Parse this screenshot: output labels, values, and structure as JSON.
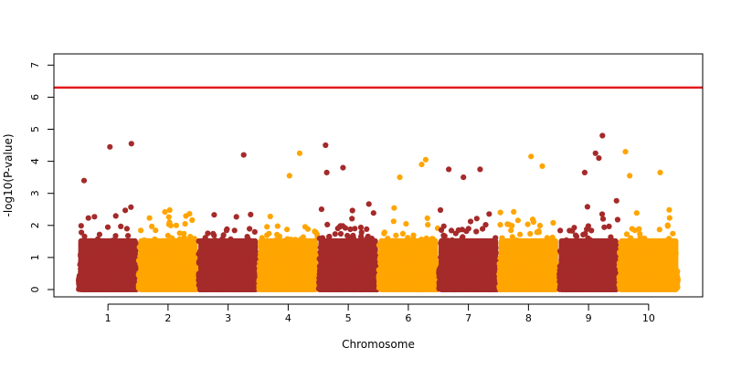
{
  "chart_data": {
    "type": "scatter",
    "subtype": "manhattan",
    "title": "",
    "xlabel": "Chromosome",
    "ylabel": "-log10(P-value)",
    "ylim": [
      0,
      7.3
    ],
    "yticks": [
      0,
      1,
      2,
      3,
      4,
      5,
      6,
      7
    ],
    "grid": false,
    "legend": "none",
    "significance_threshold": 6.3,
    "threshold_color": "#e41a1c",
    "colors": [
      "#a52a2a",
      "#ffa500"
    ],
    "categories": [
      "1",
      "2",
      "3",
      "4",
      "5",
      "6",
      "7",
      "8",
      "9",
      "10"
    ],
    "chromosomes": [
      {
        "label": "1",
        "color": "#a52a2a",
        "bulk_max": 2.7,
        "max": 4.55
      },
      {
        "label": "2",
        "color": "#ffa500",
        "bulk_max": 2.5,
        "max": 3.1
      },
      {
        "label": "3",
        "color": "#a52a2a",
        "bulk_max": 2.4,
        "max": 4.2
      },
      {
        "label": "4",
        "color": "#ffa500",
        "bulk_max": 2.7,
        "max": 4.25
      },
      {
        "label": "5",
        "color": "#a52a2a",
        "bulk_max": 2.7,
        "max": 4.5
      },
      {
        "label": "6",
        "color": "#ffa500",
        "bulk_max": 2.7,
        "max": 4.05
      },
      {
        "label": "7",
        "color": "#a52a2a",
        "bulk_max": 2.6,
        "max": 3.8
      },
      {
        "label": "8",
        "color": "#ffa500",
        "bulk_max": 2.5,
        "max": 4.15
      },
      {
        "label": "9",
        "color": "#a52a2a",
        "bulk_max": 2.8,
        "max": 4.8
      },
      {
        "label": "10",
        "color": "#ffa500",
        "bulk_max": 2.5,
        "max": 4.3
      }
    ],
    "notable_points": [
      {
        "chr": "1",
        "y": 4.45
      },
      {
        "chr": "1",
        "y": 4.55
      },
      {
        "chr": "1",
        "y": 3.4
      },
      {
        "chr": "3",
        "y": 4.2
      },
      {
        "chr": "4",
        "y": 4.25
      },
      {
        "chr": "4",
        "y": 3.55
      },
      {
        "chr": "5",
        "y": 4.5
      },
      {
        "chr": "5",
        "y": 3.8
      },
      {
        "chr": "5",
        "y": 3.65
      },
      {
        "chr": "6",
        "y": 4.05
      },
      {
        "chr": "6",
        "y": 3.9
      },
      {
        "chr": "6",
        "y": 3.5
      },
      {
        "chr": "7",
        "y": 3.75
      },
      {
        "chr": "7",
        "y": 3.75
      },
      {
        "chr": "7",
        "y": 3.5
      },
      {
        "chr": "8",
        "y": 4.15
      },
      {
        "chr": "8",
        "y": 3.85
      },
      {
        "chr": "9",
        "y": 4.8
      },
      {
        "chr": "9",
        "y": 4.25
      },
      {
        "chr": "9",
        "y": 4.1
      },
      {
        "chr": "9",
        "y": 3.65
      },
      {
        "chr": "10",
        "y": 4.3
      },
      {
        "chr": "10",
        "y": 3.65
      },
      {
        "chr": "10",
        "y": 3.55
      }
    ]
  }
}
